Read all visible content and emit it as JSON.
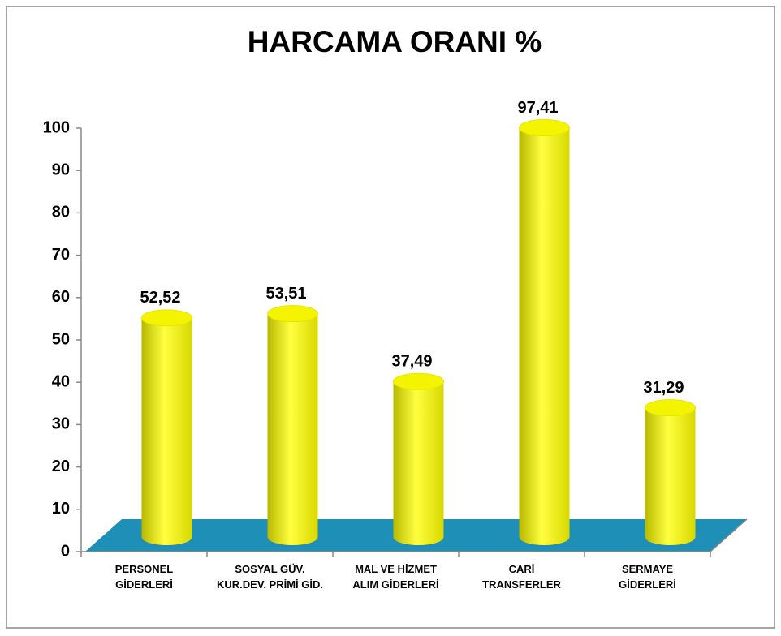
{
  "chart_data": {
    "type": "bar3d",
    "title": "HARCAMA ORANI  %",
    "categories": [
      "PERSONEL GİDERLERİ",
      "SOSYAL GÜV. KUR.DEV. PRİMİ GİD.",
      "MAL VE HİZMET ALIM GİDERLERİ",
      "CARİ TRANSFERLER",
      "SERMAYE GİDERLERİ"
    ],
    "values": [
      52.52,
      53.51,
      37.49,
      97.41,
      31.29
    ],
    "value_labels": [
      "52,52",
      "53,51",
      "37,49",
      "97,41",
      "31,29"
    ],
    "color": "#ffff00",
    "floor_color": "#1e8fb6",
    "ylim": [
      0,
      100
    ],
    "yticks": [
      0,
      10,
      20,
      30,
      40,
      50,
      60,
      70,
      80,
      90,
      100
    ],
    "grid": false
  }
}
